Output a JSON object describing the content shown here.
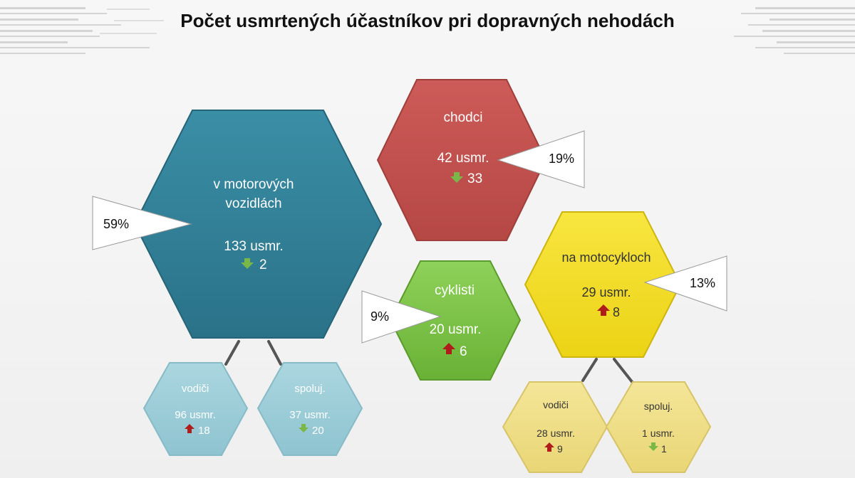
{
  "title": "Počet usmrtených účastníkov pri dopravných nehodách",
  "colors": {
    "motor": "#2f7f96",
    "chodci": "#c0504d",
    "cyklisti": "#7ac143",
    "moto": "#f2dc1c",
    "motorSub": "#9ccdd8",
    "motoSub": "#efde86",
    "down": "#7ab648",
    "up": "#b01c1c"
  },
  "nodes": {
    "motor": {
      "label_1": "v motorových",
      "label_2": "vozidlách",
      "value": "133 usmr.",
      "change": "2",
      "share": "59%"
    },
    "chodci": {
      "label": "chodci",
      "value": "42 usmr.",
      "change": "33",
      "share": "19%"
    },
    "cyklisti": {
      "label": "cyklisti",
      "value": "20 usmr.",
      "change": "6",
      "share": "9%"
    },
    "moto": {
      "label": "na motocykloch",
      "value": "29 usmr.",
      "change": "8",
      "share": "13%"
    },
    "motor_vodici": {
      "label": "vodiči",
      "value": "96 usmr.",
      "change": "18"
    },
    "motor_spoluj": {
      "label": "spoluj.",
      "value": "37 usmr.",
      "change": "20"
    },
    "moto_vodici": {
      "label": "vodiči",
      "value": "28 usmr.",
      "change": "9"
    },
    "moto_spoluj": {
      "label": "spoluj.",
      "value": "1 usmr.",
      "change": "1"
    }
  }
}
